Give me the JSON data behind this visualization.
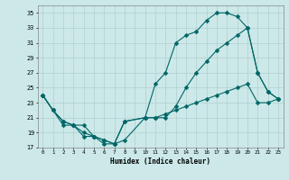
{
  "title": "",
  "xlabel": "Humidex (Indice chaleur)",
  "xlim": [
    -0.5,
    23.5
  ],
  "ylim": [
    17,
    36
  ],
  "xticks": [
    0,
    1,
    2,
    3,
    4,
    5,
    6,
    7,
    8,
    9,
    10,
    11,
    12,
    13,
    14,
    15,
    16,
    17,
    18,
    19,
    20,
    21,
    22,
    23
  ],
  "yticks": [
    17,
    19,
    21,
    23,
    25,
    27,
    29,
    31,
    33,
    35
  ],
  "background_color": "#cce8e8",
  "grid_color": "#b0d0d0",
  "line_color": "#006666",
  "line1_x": [
    0,
    1,
    2,
    3,
    4,
    5,
    6,
    7,
    8,
    10,
    11,
    12,
    13,
    14,
    15,
    16,
    17,
    18,
    19,
    20,
    21,
    22,
    23
  ],
  "line1_y": [
    24,
    22,
    20.5,
    20,
    19,
    18.5,
    18,
    17.5,
    20.5,
    21,
    25.5,
    27,
    31,
    32,
    32.5,
    34,
    35,
    35,
    34.5,
    33,
    27,
    24.5,
    23.5
  ],
  "line2_x": [
    0,
    1,
    2,
    3,
    4,
    5,
    6,
    7,
    8,
    10,
    11,
    12,
    13,
    14,
    15,
    16,
    17,
    18,
    19,
    20,
    21,
    22,
    23
  ],
  "line2_y": [
    24,
    22,
    20,
    20,
    18.5,
    18.5,
    17.5,
    17.5,
    18,
    21,
    21,
    21,
    22.5,
    25,
    27,
    28.5,
    30,
    31,
    32,
    33,
    27,
    24.5,
    23.5
  ],
  "line3_x": [
    0,
    1,
    2,
    3,
    4,
    5,
    6,
    7,
    8,
    10,
    11,
    12,
    13,
    14,
    15,
    16,
    17,
    18,
    19,
    20,
    21,
    22,
    23
  ],
  "line3_y": [
    24,
    22,
    20.5,
    20,
    20,
    18.5,
    18,
    17.5,
    20.5,
    21,
    21,
    21.5,
    22,
    22.5,
    23,
    23.5,
    24,
    24.5,
    25,
    25.5,
    23,
    23,
    23.5
  ],
  "marker_size": 2.5,
  "line_width": 0.8
}
